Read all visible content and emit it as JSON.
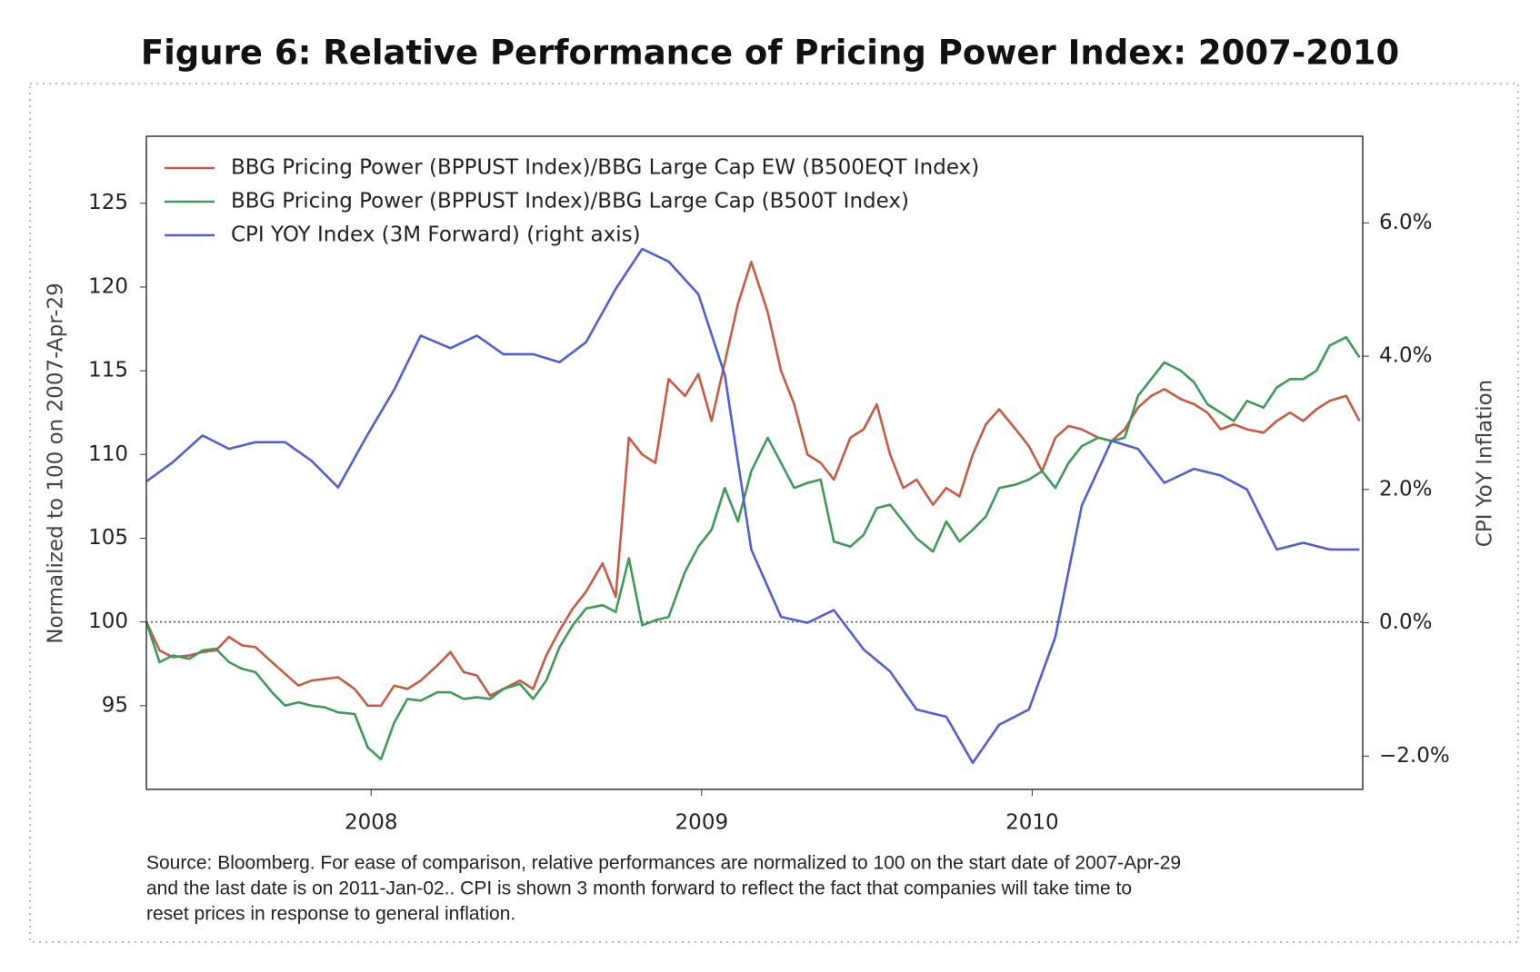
{
  "chart_data": {
    "type": "line",
    "title": "Figure 6: Relative Performance of Pricing Power Index: 2007-2010",
    "ylabel": "Normalized to 100 on 2007-Apr-29",
    "y2label": "CPI YoY Inflation",
    "note": [
      "Source: Bloomberg. For ease of comparison, relative performances are normalized to 100 on the start date of 2007-Apr-29",
      "and the last date is on 2011-Jan-02.. CPI is shown 3 month forward to reflect the fact that companies will take time to",
      "reset prices in response to general inflation."
    ],
    "legend": "upper left",
    "grid": false,
    "hline": 100,
    "xlim": [
      2007.32,
      2011.0
    ],
    "xticks": [
      2008,
      2009,
      2010
    ],
    "ylim": [
      90,
      129
    ],
    "yticks": [
      95,
      100,
      105,
      110,
      115,
      120,
      125
    ],
    "y2lim": [
      -2.5,
      7.3
    ],
    "y2ticks": [
      {
        "value": -2,
        "label": "−2.0%"
      },
      {
        "value": 0,
        "label": "0.0%"
      },
      {
        "value": 2,
        "label": "2.0%"
      },
      {
        "value": 4,
        "label": "4.0%"
      },
      {
        "value": 6,
        "label": "6.0%"
      }
    ],
    "x": [
      2007.32,
      2007.36,
      2007.4,
      2007.45,
      2007.49,
      2007.53,
      2007.57,
      2007.61,
      2007.65,
      2007.7,
      2007.74,
      2007.78,
      2007.82,
      2007.86,
      2007.9,
      2007.95,
      2007.99,
      2008.03,
      2008.07,
      2008.11,
      2008.15,
      2008.2,
      2008.24,
      2008.28,
      2008.32,
      2008.36,
      2008.4,
      2008.45,
      2008.49,
      2008.53,
      2008.57,
      2008.61,
      2008.65,
      2008.7,
      2008.74,
      2008.78,
      2008.82,
      2008.86,
      2008.9,
      2008.95,
      2008.99,
      2009.03,
      2009.07,
      2009.11,
      2009.15,
      2009.2,
      2009.24,
      2009.28,
      2009.32,
      2009.36,
      2009.4,
      2009.45,
      2009.49,
      2009.53,
      2009.57,
      2009.61,
      2009.65,
      2009.7,
      2009.74,
      2009.78,
      2009.82,
      2009.86,
      2009.9,
      2009.95,
      2009.99,
      2010.03,
      2010.07,
      2010.11,
      2010.15,
      2010.2,
      2010.24,
      2010.28,
      2010.32,
      2010.36,
      2010.4,
      2010.45,
      2010.49,
      2010.53,
      2010.57,
      2010.61,
      2010.65,
      2010.7,
      2010.74,
      2010.78,
      2010.82,
      2010.86,
      2010.9,
      2010.95,
      2010.99
    ],
    "series": [
      {
        "name": "BBG Pricing Power (BPPUST Index)/BBG Large Cap EW (B500EQT Index)",
        "color": "#c85a45",
        "values": [
          100,
          98.3,
          97.9,
          98.0,
          98.2,
          98.3,
          99.1,
          98.6,
          98.5,
          97.6,
          96.9,
          96.2,
          96.5,
          96.6,
          96.7,
          96.0,
          95.0,
          95.0,
          96.2,
          96.0,
          96.5,
          97.4,
          98.2,
          97.0,
          96.8,
          95.6,
          96.0,
          96.5,
          96.0,
          98.0,
          99.5,
          100.8,
          101.8,
          103.5,
          101.5,
          111.0,
          110.0,
          109.5,
          114.5,
          113.5,
          114.8,
          112.0,
          115.5,
          119.0,
          121.5,
          118.5,
          115.0,
          113.0,
          110.0,
          109.5,
          108.5,
          111.0,
          111.5,
          113.0,
          110.0,
          108.0,
          108.5,
          107.0,
          108.0,
          107.5,
          110.0,
          111.8,
          112.7,
          111.5,
          110.5,
          109.0,
          111.0,
          111.7,
          111.5,
          111.0,
          110.8,
          111.5,
          112.8,
          113.5,
          113.9,
          113.3,
          113.0,
          112.5,
          111.5,
          111.8,
          111.5,
          111.3,
          112.0,
          112.5,
          112.0,
          112.7,
          113.2,
          113.5,
          112.0
        ]
      },
      {
        "name": "BBG Pricing Power (BPPUST Index)/BBG Large Cap (B500T Index)",
        "color": "#3e9a56",
        "values": [
          100,
          97.6,
          98.0,
          97.8,
          98.3,
          98.4,
          97.6,
          97.2,
          97.0,
          95.8,
          95.0,
          95.2,
          95.0,
          94.9,
          94.6,
          94.5,
          92.5,
          91.8,
          94.0,
          95.4,
          95.3,
          95.8,
          95.8,
          95.4,
          95.5,
          95.4,
          96.0,
          96.3,
          95.4,
          96.5,
          98.5,
          99.8,
          100.8,
          101.0,
          100.6,
          103.8,
          99.8,
          100.1,
          100.3,
          103.0,
          104.5,
          105.5,
          108.0,
          106.0,
          109.0,
          111.0,
          109.5,
          108.0,
          108.3,
          108.5,
          104.8,
          104.5,
          105.2,
          106.8,
          107.0,
          106.0,
          105.0,
          104.2,
          106.0,
          104.8,
          105.5,
          106.3,
          108.0,
          108.2,
          108.5,
          109.0,
          108.0,
          109.5,
          110.5,
          111.0,
          110.8,
          111.0,
          113.5,
          114.5,
          115.5,
          115.0,
          114.3,
          113.0,
          112.5,
          112.0,
          113.2,
          112.8,
          114.0,
          114.5,
          114.5,
          115.0,
          116.5,
          117.0,
          115.8
        ]
      },
      {
        "name": "CPI YOY Index (3M Forward) (right axis)",
        "color": "#4e5fd6",
        "axis": "y2",
        "x": [
          2007.32,
          2007.4,
          2007.49,
          2007.57,
          2007.65,
          2007.74,
          2007.82,
          2007.9,
          2007.99,
          2008.07,
          2008.15,
          2008.24,
          2008.32,
          2008.4,
          2008.49,
          2008.57,
          2008.65,
          2008.74,
          2008.82,
          2008.9,
          2008.99,
          2009.07,
          2009.15,
          2009.24,
          2009.32,
          2009.4,
          2009.49,
          2009.57,
          2009.65,
          2009.74,
          2009.82,
          2009.9,
          2009.99,
          2010.07,
          2010.15,
          2010.24,
          2010.32,
          2010.4,
          2010.49,
          2010.57,
          2010.65,
          2010.74,
          2010.82,
          2010.9,
          2010.99
        ],
        "values": [
          2.12,
          2.41,
          2.81,
          2.61,
          2.71,
          2.71,
          2.43,
          2.03,
          2.83,
          3.5,
          4.31,
          4.12,
          4.31,
          4.03,
          4.03,
          3.91,
          4.21,
          5.01,
          5.61,
          5.42,
          4.93,
          3.72,
          1.1,
          0.09,
          0,
          0.19,
          -0.4,
          -0.73,
          -1.3,
          -1.41,
          -2.1,
          -1.53,
          -1.3,
          -0.21,
          1.76,
          2.73,
          2.61,
          2.1,
          2.31,
          2.21,
          2.0,
          1.1,
          1.2,
          1.1,
          1.1
        ]
      }
    ]
  }
}
